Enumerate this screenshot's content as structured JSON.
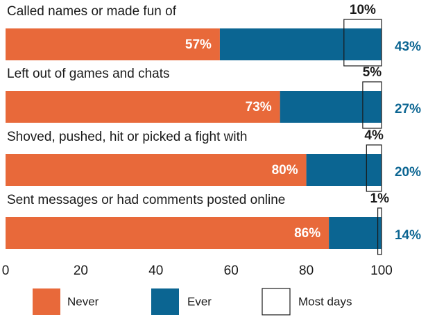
{
  "chart_data": {
    "type": "stacked-bar-horizontal",
    "categories": [
      "Called names or made fun of",
      "Left out of games and chats",
      "Shoved, pushed, hit or picked a fight with",
      "Sent messages or had comments posted online"
    ],
    "series": [
      {
        "name": "Never",
        "color": "#e8693a",
        "values": [
          57,
          73,
          80,
          86
        ],
        "value_labels": [
          "57%",
          "73%",
          "80%",
          "86%"
        ]
      },
      {
        "name": "Ever",
        "color": "#0b6592",
        "values": [
          43,
          27,
          20,
          14
        ],
        "value_labels": [
          "43%",
          "27%",
          "20%",
          "14%"
        ]
      },
      {
        "name": "Most days",
        "color": "#ffffff",
        "values": [
          10,
          5,
          4,
          1
        ],
        "value_labels": [
          "10%",
          "5%",
          "4%",
          "1%"
        ]
      }
    ],
    "xlim": [
      0,
      100
    ],
    "xticks": [
      0,
      20,
      40,
      60,
      80,
      100
    ]
  }
}
